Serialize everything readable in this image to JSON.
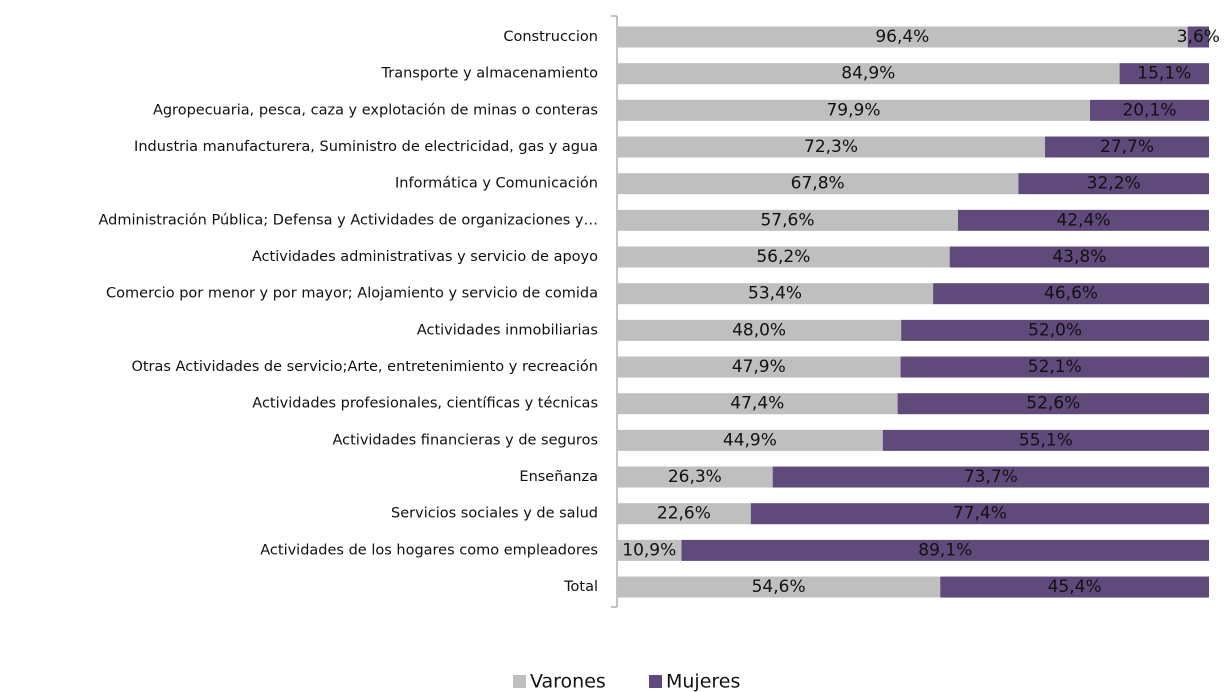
{
  "chart_data": {
    "type": "stacked-bar-horizontal",
    "categories": [
      "Construccion",
      "Transporte y almacenamiento",
      "Agropecuaria, pesca, caza y explotación de minas o conteras",
      "Industria manufacturera, Suministro de electricidad, gas y agua",
      "Informática y Comunicación",
      "Administración Pública; Defensa y Actividades de organizaciones y…",
      "Actividades administrativas y servicio de apoyo",
      "Comercio por menor y por mayor; Alojamiento y servicio de comida",
      "Actividades inmobiliarias",
      "Otras Actividades de servicio;Arte, entretenimiento y recreación",
      "Actividades profesionales, científicas y técnicas",
      "Actividades financieras y de seguros",
      "Enseñanza",
      "Servicios sociales y de salud",
      "Actividades de los hogares como empleadores",
      "Total"
    ],
    "xlim": [
      0,
      100
    ],
    "series": [
      {
        "name": "Varones",
        "color": "#bfbfbf",
        "values": [
          96.4,
          84.9,
          79.9,
          72.3,
          67.8,
          57.6,
          56.2,
          53.4,
          48.0,
          47.9,
          47.4,
          44.9,
          26.3,
          22.6,
          10.9,
          54.6
        ],
        "value_labels": [
          "96,4%",
          "84,9%",
          "79,9%",
          "72,3%",
          "67,8%",
          "57,6%",
          "56,2%",
          "53,4%",
          "48,0%",
          "47,9%",
          "47,4%",
          "44,9%",
          "26,3%",
          "22,6%",
          "10,9%",
          "54,6%"
        ]
      },
      {
        "name": "Mujeres",
        "color": "#604a7b",
        "values": [
          3.6,
          15.1,
          20.1,
          27.7,
          32.2,
          42.4,
          43.8,
          46.6,
          52.0,
          52.1,
          52.6,
          55.1,
          73.7,
          77.4,
          89.1,
          45.4
        ],
        "value_labels": [
          "3,6%",
          "15,1%",
          "20,1%",
          "27,7%",
          "32,2%",
          "42,4%",
          "43,8%",
          "46,6%",
          "52,0%",
          "52,1%",
          "52,6%",
          "55,1%",
          "73,7%",
          "77,4%",
          "89,1%",
          "45,4%"
        ]
      }
    ]
  }
}
